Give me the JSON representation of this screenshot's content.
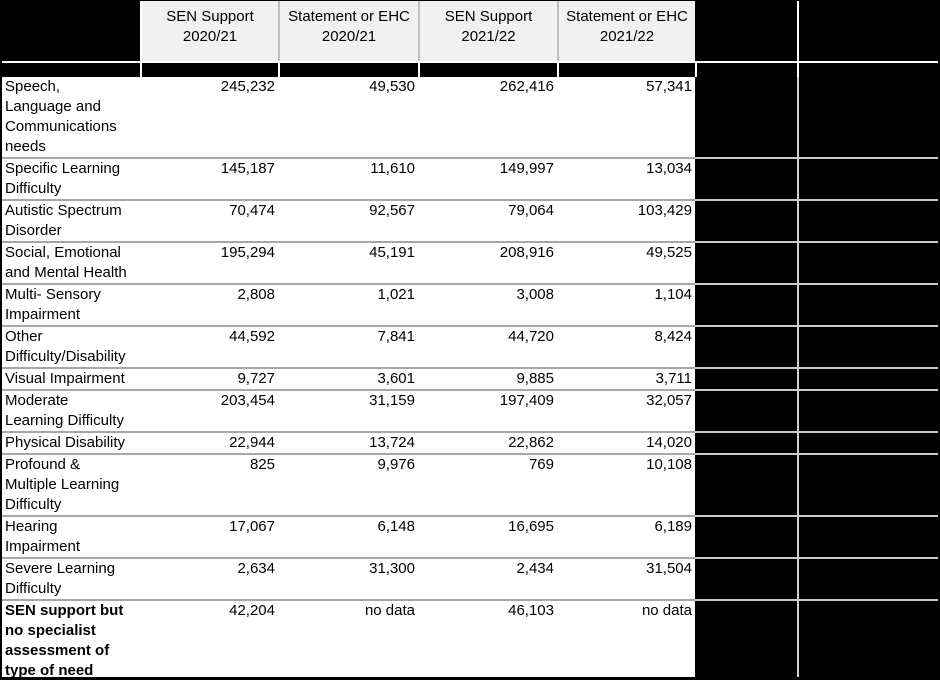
{
  "colors": {
    "black_fill": "#000000",
    "header_fill": "#f1f1f1",
    "gridline": "#a6a6a6",
    "gridline_on_black": "#c9c9c9",
    "text": "#000000"
  },
  "chart_data": {
    "type": "table",
    "columns": [
      "SEN Support 2020/21",
      "Statement or EHC 2020/21",
      "SEN Support 2021/22",
      "Statement or EHC 2021/22"
    ],
    "rows": [
      {
        "label": "Speech,\nLanguage and\nCommunications\nneeds",
        "values": [
          "245,232",
          "49,530",
          "262,416",
          "57,341"
        ]
      },
      {
        "label": "Specific Learning\nDifficulty",
        "values": [
          "145,187",
          "11,610",
          "149,997",
          "13,034"
        ]
      },
      {
        "label": "Autistic Spectrum\nDisorder",
        "values": [
          "70,474",
          "92,567",
          "79,064",
          "103,429"
        ]
      },
      {
        "label": "Social, Emotional\nand Mental Health",
        "values": [
          "195,294",
          "45,191",
          "208,916",
          "49,525"
        ]
      },
      {
        "label": "Multi- Sensory\nImpairment",
        "values": [
          "2,808",
          "1,021",
          "3,008",
          "1,104"
        ]
      },
      {
        "label": "Other\nDifficulty/Disability",
        "values": [
          "44,592",
          "7,841",
          "44,720",
          "8,424"
        ]
      },
      {
        "label": "Visual Impairment",
        "values": [
          "9,727",
          "3,601",
          "9,885",
          "3,711"
        ]
      },
      {
        "label": "Moderate\nLearning Difficulty",
        "values": [
          "203,454",
          "31,159",
          "197,409",
          "32,057"
        ]
      },
      {
        "label": "Physical Disability",
        "values": [
          "22,944",
          "13,724",
          "22,862",
          "14,020"
        ]
      },
      {
        "label": "Profound &\nMultiple Learning\nDifficulty",
        "values": [
          "825",
          "9,976",
          "769",
          "10,108"
        ]
      },
      {
        "label": "Hearing\nImpairment",
        "values": [
          "17,067",
          "6,148",
          "16,695",
          "6,189"
        ]
      },
      {
        "label": "Severe Learning\nDifficulty",
        "values": [
          "2,634",
          "31,300",
          "2,434",
          "31,504"
        ]
      },
      {
        "label": "SEN support but\nno specialist\nassessment of\ntype of need",
        "values": [
          "42,204",
          "no data",
          "46,103",
          "no data"
        ],
        "bold": true
      }
    ]
  }
}
